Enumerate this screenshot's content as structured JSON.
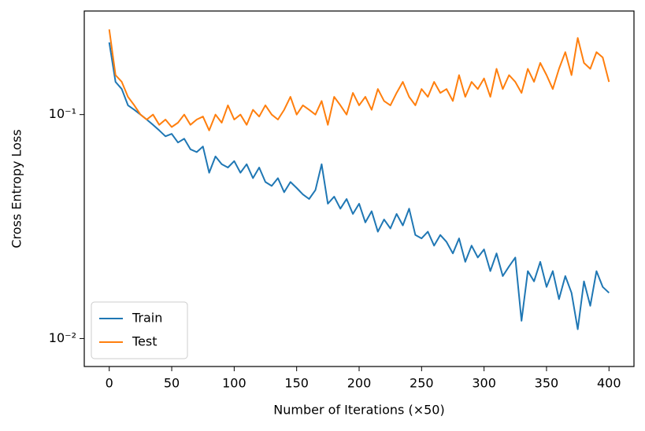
{
  "chart_data": {
    "type": "line",
    "xlabel": "Number of Iterations (×50)",
    "ylabel": "Cross Entropy Loss",
    "yscale": "log",
    "legend": "lower left",
    "xlim": [
      -20,
      420
    ],
    "ylim": [
      0.0075,
      0.29
    ],
    "xticks": [
      0,
      50,
      100,
      150,
      200,
      250,
      300,
      350,
      400
    ],
    "yticks": [
      {
        "value": 0.01,
        "label": "10⁻²"
      },
      {
        "value": 0.1,
        "label": "10⁻¹"
      }
    ],
    "x": [
      0,
      5,
      10,
      15,
      20,
      25,
      30,
      35,
      40,
      45,
      50,
      55,
      60,
      65,
      70,
      75,
      80,
      85,
      90,
      95,
      100,
      105,
      110,
      115,
      120,
      125,
      130,
      135,
      140,
      145,
      150,
      155,
      160,
      165,
      170,
      175,
      180,
      185,
      190,
      195,
      200,
      205,
      210,
      215,
      220,
      225,
      230,
      235,
      240,
      245,
      250,
      255,
      260,
      265,
      270,
      275,
      280,
      285,
      290,
      295,
      300,
      305,
      310,
      315,
      320,
      325,
      330,
      335,
      340,
      345,
      350,
      355,
      360,
      365,
      370,
      375,
      380,
      385,
      390,
      395,
      400
    ],
    "series": [
      {
        "name": "Train",
        "color": "#1f77b4",
        "values": [
          0.21,
          0.14,
          0.13,
          0.11,
          0.105,
          0.1,
          0.095,
          0.09,
          0.085,
          0.08,
          0.082,
          0.075,
          0.078,
          0.07,
          0.068,
          0.072,
          0.055,
          0.065,
          0.06,
          0.058,
          0.062,
          0.055,
          0.06,
          0.052,
          0.058,
          0.05,
          0.048,
          0.052,
          0.045,
          0.05,
          0.047,
          0.044,
          0.042,
          0.046,
          0.06,
          0.04,
          0.043,
          0.038,
          0.042,
          0.036,
          0.04,
          0.033,
          0.037,
          0.03,
          0.034,
          0.031,
          0.036,
          0.032,
          0.038,
          0.029,
          0.028,
          0.03,
          0.026,
          0.029,
          0.027,
          0.024,
          0.028,
          0.022,
          0.026,
          0.023,
          0.025,
          0.02,
          0.024,
          0.019,
          0.021,
          0.023,
          0.012,
          0.02,
          0.018,
          0.022,
          0.017,
          0.02,
          0.015,
          0.019,
          0.016,
          0.011,
          0.018,
          0.014,
          0.02,
          0.017,
          0.016
        ]
      },
      {
        "name": "Test",
        "color": "#ff7f0e",
        "values": [
          0.24,
          0.15,
          0.14,
          0.12,
          0.11,
          0.1,
          0.095,
          0.1,
          0.09,
          0.095,
          0.088,
          0.092,
          0.1,
          0.09,
          0.095,
          0.098,
          0.085,
          0.1,
          0.092,
          0.11,
          0.095,
          0.1,
          0.09,
          0.105,
          0.098,
          0.11,
          0.1,
          0.095,
          0.105,
          0.12,
          0.1,
          0.11,
          0.105,
          0.1,
          0.115,
          0.09,
          0.12,
          0.11,
          0.1,
          0.125,
          0.11,
          0.12,
          0.105,
          0.13,
          0.115,
          0.11,
          0.125,
          0.14,
          0.12,
          0.11,
          0.13,
          0.12,
          0.14,
          0.125,
          0.13,
          0.115,
          0.15,
          0.12,
          0.14,
          0.13,
          0.145,
          0.12,
          0.16,
          0.13,
          0.15,
          0.14,
          0.125,
          0.16,
          0.14,
          0.17,
          0.15,
          0.13,
          0.16,
          0.19,
          0.15,
          0.22,
          0.17,
          0.16,
          0.19,
          0.18,
          0.14
        ]
      }
    ]
  }
}
